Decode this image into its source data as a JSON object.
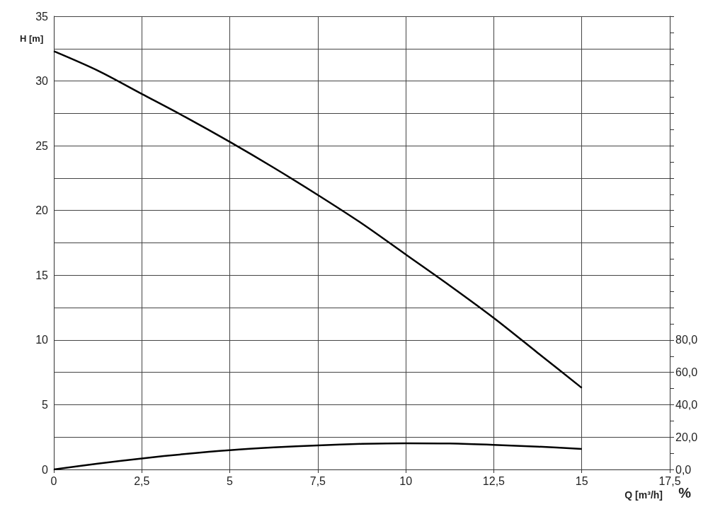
{
  "chart_data": {
    "type": "line",
    "xlabel": "Q [m³/h]",
    "ylabel": "H [m]",
    "y2label": "%",
    "xlim": [
      0,
      17.5
    ],
    "xticks": [
      0,
      {
        "value": 2.5,
        "label": "2,5"
      },
      5,
      {
        "value": 7.5,
        "label": "7,5"
      },
      10,
      {
        "value": 12.5,
        "label": "12,5"
      },
      15,
      {
        "value": 17.5,
        "label": "17,5"
      }
    ],
    "ylim": [
      0,
      35
    ],
    "yticks": [
      0,
      {
        "value": 2.5,
        "label": null
      },
      5,
      {
        "value": 7.5,
        "label": null
      },
      10,
      {
        "value": 12.5,
        "label": null
      },
      15,
      {
        "value": 17.5,
        "label": null
      },
      20,
      {
        "value": 22.5,
        "label": null
      },
      25,
      {
        "value": 27.5,
        "label": null
      },
      30,
      {
        "value": 32.5,
        "label": null
      },
      35
    ],
    "y2lim": [
      0,
      280
    ],
    "y2ticks": [
      {
        "value": 0,
        "label": "0,0"
      },
      {
        "value": 10,
        "label": null
      },
      {
        "value": 20,
        "label": "20,0"
      },
      {
        "value": 30,
        "label": null
      },
      {
        "value": 40,
        "label": "40,0"
      },
      {
        "value": 50,
        "label": null
      },
      {
        "value": 60,
        "label": "60,0"
      },
      {
        "value": 70,
        "label": null
      },
      {
        "value": 80,
        "label": "80,0"
      },
      {
        "value": 90,
        "label": null
      },
      {
        "value": 100,
        "label": null
      },
      {
        "value": 110,
        "label": null
      },
      {
        "value": 120,
        "label": null
      },
      {
        "value": 130,
        "label": null
      },
      {
        "value": 140,
        "label": null
      },
      {
        "value": 150,
        "label": null
      },
      {
        "value": 160,
        "label": null
      },
      {
        "value": 170,
        "label": null
      },
      {
        "value": 180,
        "label": null
      },
      {
        "value": 190,
        "label": null
      },
      {
        "value": 200,
        "label": null
      },
      {
        "value": 210,
        "label": null
      },
      {
        "value": 220,
        "label": null
      },
      {
        "value": 230,
        "label": null
      },
      {
        "value": 240,
        "label": null
      },
      {
        "value": 250,
        "label": null
      },
      {
        "value": 260,
        "label": null
      },
      {
        "value": 270,
        "label": null
      },
      {
        "value": 280,
        "label": null
      }
    ],
    "grid": true,
    "marker": "none",
    "line_style": "solid",
    "series": [
      {
        "color": "#000000",
        "x": [
          0,
          1.25,
          2.5,
          3.75,
          5,
          6.25,
          7.5,
          8.75,
          10,
          11.25,
          12.5,
          13.75,
          15
        ],
        "values": [
          32.3,
          30.8,
          29.0,
          27.2,
          25.3,
          23.3,
          21.2,
          19.0,
          16.6,
          14.2,
          11.7,
          9.0,
          6.3
        ]
      },
      {
        "color": "#000000",
        "axis": "y2",
        "x": [
          0,
          1.25,
          2.5,
          3.75,
          5,
          6.25,
          7.5,
          8.75,
          10,
          11.25,
          12.5,
          13.75,
          15
        ],
        "values": [
          0,
          3.6,
          6.8,
          9.6,
          11.9,
          13.6,
          14.9,
          15.8,
          16.2,
          16.0,
          15.2,
          14.1,
          12.7
        ]
      }
    ]
  }
}
